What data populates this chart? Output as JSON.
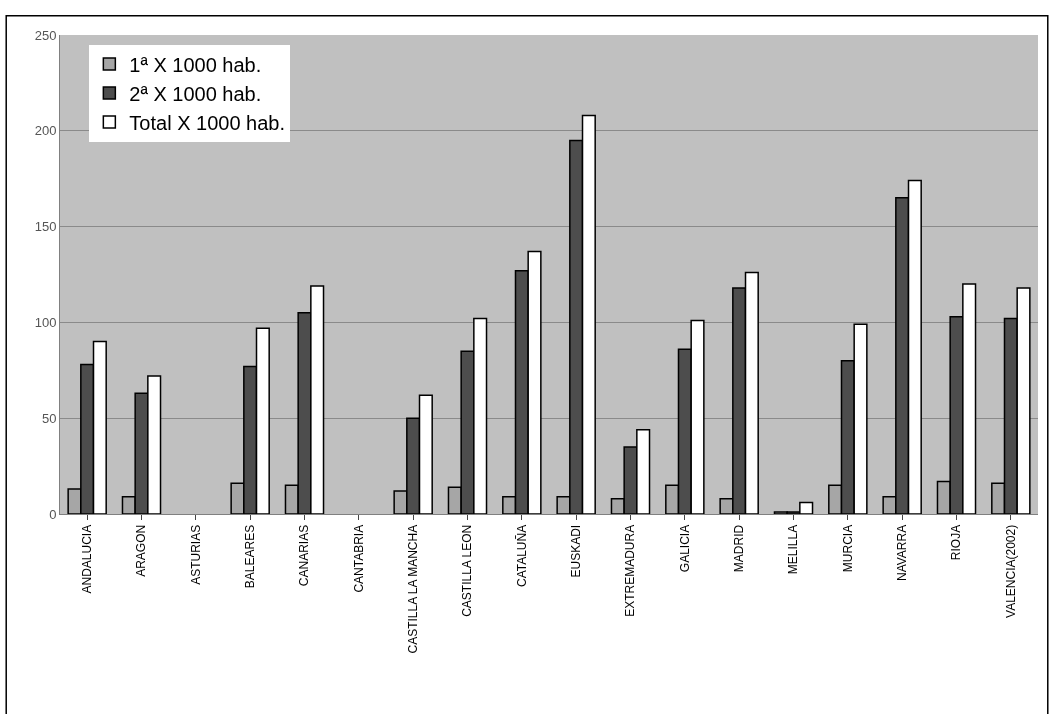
{
  "chart_data": {
    "type": "bar",
    "categories": [
      "ANDALUCIA",
      "ARAGON",
      "ASTURIAS",
      "BALEARES",
      "CANARIAS",
      "CANTABRIA",
      "CASTILLA LA MANCHA",
      "CASTILLA LEON",
      "CATALUÑA",
      "EUSKADI",
      "EXTREMADURA",
      "GALICIA",
      "MADRID",
      "MELILLA",
      "MURCIA",
      "NAVARRA",
      "RIOJA",
      "VALENCIA(2002)"
    ],
    "series": [
      {
        "name": "1ª X 1000 hab.",
        "color": "#a6a6a6",
        "values": [
          13,
          9,
          null,
          16,
          15,
          null,
          12,
          14,
          9,
          9,
          8,
          15,
          8,
          1,
          15,
          9,
          17,
          16
        ]
      },
      {
        "name": "2ª X 1000 hab.",
        "color": "#4d4d4d",
        "values": [
          78,
          63,
          null,
          77,
          105,
          null,
          50,
          85,
          127,
          195,
          35,
          86,
          118,
          1,
          80,
          165,
          103,
          102
        ]
      },
      {
        "name": "Total X 1000 hab.",
        "color": "#ffffff",
        "values": [
          90,
          72,
          null,
          97,
          119,
          null,
          62,
          102,
          137,
          208,
          44,
          101,
          126,
          6,
          99,
          174,
          120,
          118
        ]
      }
    ],
    "ylim": [
      0,
      250
    ],
    "yticks": [
      0,
      50,
      100,
      150,
      200,
      250
    ],
    "grid": "y",
    "legend": "top left"
  }
}
